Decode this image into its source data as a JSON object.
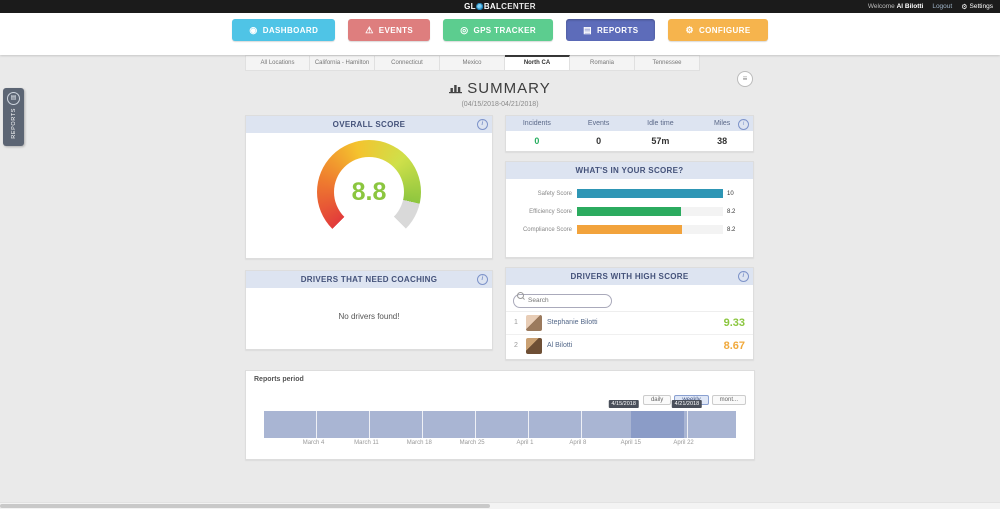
{
  "topbar": {
    "logo": {
      "part1": "GL",
      "part2": "BAL",
      "part3": "CENTER"
    },
    "welcome_prefix": "Welcome",
    "user_name": "Al Bilotti",
    "logout_label": "Logout",
    "settings_label": "Settings",
    "settings_glyph": "⚙"
  },
  "nav": {
    "items": [
      {
        "label": "DASHBOARD",
        "icon": "dashboard-icon",
        "glyph": "◉",
        "color": "#4fc4e6",
        "active": false
      },
      {
        "label": "EVENTS",
        "icon": "events-warning-icon",
        "glyph": "⚠",
        "color": "#de7e7e",
        "active": false
      },
      {
        "label": "GPS TRACKER",
        "icon": "gps-marker-icon",
        "glyph": "◎",
        "color": "#5ccd8f",
        "active": false
      },
      {
        "label": "REPORTS",
        "icon": "reports-icon",
        "glyph": "▤",
        "color": "#5d6cba",
        "active": true
      },
      {
        "label": "CONFIGURE",
        "icon": "configure-wrench-icon",
        "glyph": "⚙",
        "color": "#f6b44d",
        "active": false
      }
    ]
  },
  "side_tab": {
    "label": "REPORTS",
    "icon_glyph": "▤"
  },
  "tabs": {
    "labels": [
      "All Locations",
      "California - Hamilton",
      "Connecticut",
      "Mexico",
      "North CA",
      "Romania",
      "Tennessee"
    ],
    "active": "North CA"
  },
  "summary": {
    "title": "SUMMARY",
    "subtitle": "(04/15/2018-04/21/2018)"
  },
  "overall_score": {
    "title": "OVERALL SCORE",
    "value": "8.8",
    "max": 10,
    "value_color": "#8bc63f",
    "chart_data": {
      "type": "gauge",
      "value": 8.8,
      "range": [
        0,
        10
      ]
    }
  },
  "stats": {
    "columns": [
      "Incidents",
      "Events",
      "Idle time",
      "Miles"
    ],
    "values": [
      {
        "text": "0",
        "color": "#27ae60"
      },
      {
        "text": "0",
        "color": "#333333"
      },
      {
        "text": "57m",
        "color": "#333333"
      },
      {
        "text": "38",
        "color": "#333333"
      }
    ]
  },
  "score_breakdown": {
    "title": "WHAT'S IN YOUR SCORE?",
    "chart_data": {
      "type": "bar",
      "categories": [
        "Safety Score",
        "Efficiency Score",
        "Compliance Score"
      ],
      "values": [
        10,
        8.2,
        8.2
      ],
      "xlim": [
        0,
        10
      ]
    },
    "rows": [
      {
        "label": "Safety Score",
        "value": "10",
        "width_pct": 100,
        "color": "#2e96b5"
      },
      {
        "label": "Efficiency Score",
        "value": "8.2",
        "width_pct": 71,
        "color": "#2bab5f"
      },
      {
        "label": "Compliance Score",
        "value": "8.2",
        "width_pct": 72,
        "color": "#f2a33c"
      }
    ]
  },
  "coaching": {
    "title": "DRIVERS THAT NEED COACHING",
    "empty_text": "No drivers found!"
  },
  "high_score": {
    "title": "DRIVERS WITH HIGH SCORE",
    "search_placeholder": "Search",
    "drivers": [
      {
        "rank": "1",
        "name": "Stephanie Bilotti",
        "score": "9.33",
        "score_color": "#8bc63f"
      },
      {
        "rank": "2",
        "name": "Al Bilotti",
        "score": "8.67",
        "score_color": "#f0a93c"
      }
    ]
  },
  "reports_period": {
    "title": "Reports period",
    "range_buttons": [
      {
        "label": "daily",
        "active": false
      },
      {
        "label": "weekly",
        "active": true
      },
      {
        "label": "mont...",
        "active": false
      }
    ],
    "selected_range": {
      "start": "4/15/2018",
      "end": "4/21/2018"
    },
    "chart_data": {
      "type": "bar",
      "categories": [
        "March 4",
        "March 11",
        "March 18",
        "March 25",
        "April 1",
        "April 8",
        "April 15",
        "April 22"
      ],
      "values": [
        1,
        1,
        1,
        1,
        1,
        1,
        1,
        1
      ],
      "selected_range": [
        "4/15/2018",
        "4/21/2018"
      ],
      "bar_color": "#a9b5d3",
      "selected_color": "#8b9cc7"
    }
  }
}
